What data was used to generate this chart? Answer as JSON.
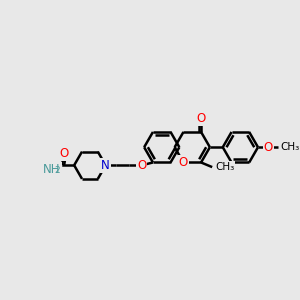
{
  "bg_color": "#e8e8e8",
  "bond_color": "#000000",
  "bond_width": 1.8,
  "atom_colors": {
    "O": "#ff0000",
    "N": "#0000cd",
    "C": "#000000",
    "H": "#4a9a9a"
  },
  "font_size": 8.5,
  "sub_font_size": 6.5,
  "figsize": [
    3.0,
    3.0
  ],
  "dpi": 100,
  "xlim": [
    0,
    300
  ],
  "ylim": [
    0,
    300
  ]
}
